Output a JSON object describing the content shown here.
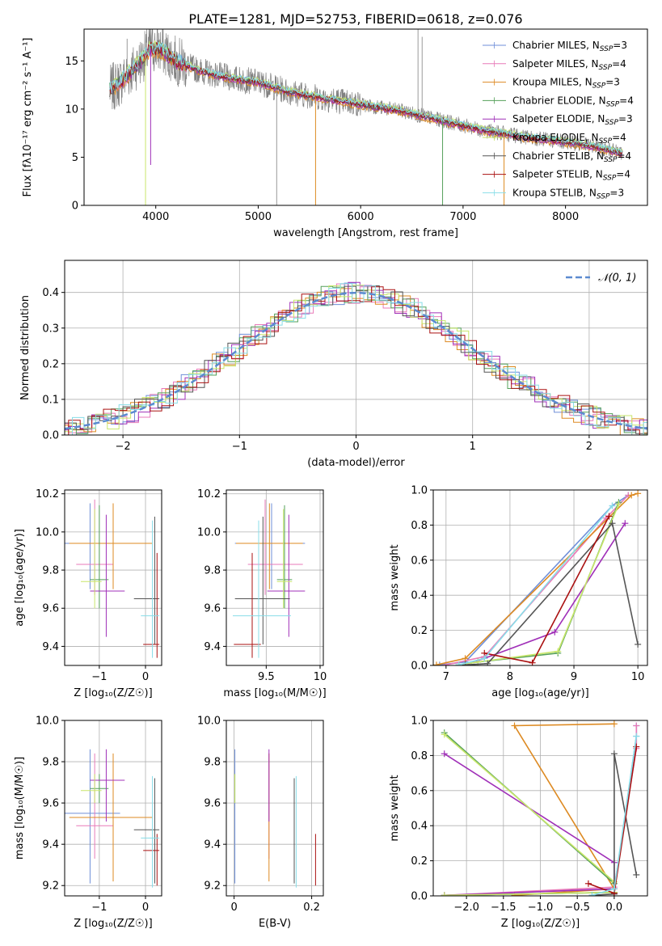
{
  "title": "PLATE=1281, MJD=52753, FIBERID=0618, z=0.076",
  "colors": {
    "chabrier_miles": "#6f8fd8",
    "salpeter_miles": "#e87ab8",
    "kroupa_miles": "#dd8a22",
    "chabrier_elodie": "#55a05a",
    "salpeter_elodie": "#a030b8",
    "kroupa_elodie": "#c8e66a",
    "chabrier_stelib": "#555555",
    "salpeter_stelib": "#aa1111",
    "kroupa_stelib": "#88dde8",
    "spectrum": "#808080",
    "normal": "#5b8ad0"
  },
  "legend_entries": [
    {
      "name": "Chabrier MILES, N",
      "sub": "SSP",
      "tail": "=3",
      "color_key": "chabrier_miles"
    },
    {
      "name": "Salpeter MILES, N",
      "sub": "SSP",
      "tail": "=4",
      "color_key": "salpeter_miles"
    },
    {
      "name": "Kroupa MILES, N",
      "sub": "SSP",
      "tail": "=3",
      "color_key": "kroupa_miles"
    },
    {
      "name": "Chabrier ELODIE, N",
      "sub": "SSP",
      "tail": "=4",
      "color_key": "chabrier_elodie"
    },
    {
      "name": "Salpeter ELODIE, N",
      "sub": "SSP",
      "tail": "=3",
      "color_key": "salpeter_elodie"
    },
    {
      "name": "Kroupa ELODIE, N",
      "sub": "SSP",
      "tail": "=4",
      "color_key": "kroupa_elodie"
    },
    {
      "name": "Chabrier STELIB, N",
      "sub": "SSP",
      "tail": "=4",
      "color_key": "chabrier_stelib"
    },
    {
      "name": "Salpeter STELIB, N",
      "sub": "SSP",
      "tail": "=4",
      "color_key": "salpeter_stelib"
    },
    {
      "name": "Kroupa STELIB, N",
      "sub": "SSP",
      "tail": "=3",
      "color_key": "kroupa_stelib"
    }
  ],
  "chart_data": [
    {
      "id": "spectrum",
      "type": "line",
      "xlabel": "wavelength [Angstrom, rest frame]",
      "ylabel": "Flux [fλ10⁻¹⁷ erg cm⁻² s⁻¹ A⁻¹]",
      "xlim": [
        3300,
        8800
      ],
      "ylim": [
        0,
        18.3
      ],
      "xticks": [
        4000,
        5000,
        6000,
        7000,
        8000
      ],
      "yticks": [
        0,
        5,
        10,
        15
      ],
      "grid": false,
      "legend": "top-right",
      "continuum": {
        "x": [
          3550,
          3650,
          3750,
          3850,
          3950,
          4050,
          4200,
          4400,
          4600,
          4800,
          5000,
          5300,
          5600,
          6000,
          6400,
          6800,
          7200,
          7600,
          8000,
          8300,
          8550
        ],
        "y": [
          12.0,
          12.8,
          13.8,
          15.0,
          16.3,
          16.2,
          15.0,
          14.1,
          13.5,
          13.1,
          12.8,
          11.8,
          11.2,
          10.5,
          9.8,
          8.8,
          7.8,
          7.1,
          6.6,
          6.1,
          5.4
        ]
      }
    },
    {
      "id": "residuals",
      "type": "line",
      "xlabel": "(data-model)/error",
      "ylabel": "Normed distribution",
      "xlim": [
        -2.5,
        2.5
      ],
      "ylim": [
        0,
        0.49
      ],
      "xticks": [
        -2,
        -1,
        0,
        1,
        2
      ],
      "yticks": [
        0.0,
        0.1,
        0.2,
        0.3,
        0.4
      ],
      "grid": true,
      "legend": "top-right",
      "legend_label": "𝒩(0, 1)"
    },
    {
      "id": "age_vs_Z",
      "type": "scatter",
      "xlabel": "Z [log₁₀(Z/Z☉)]",
      "ylabel": "age  [log₁₀(age/yr)]",
      "xlim": [
        -1.75,
        0.35
      ],
      "ylim": [
        9.3,
        10.22
      ],
      "xticks": [
        -1,
        0
      ],
      "yticks": [
        9.4,
        9.6,
        9.8,
        10.0,
        10.2
      ],
      "grid": true
    },
    {
      "id": "age_vs_mass",
      "type": "scatter",
      "xlabel": "mass [log₁₀(M/M☉)]",
      "ylabel": "",
      "xlim": [
        9.13,
        10.03
      ],
      "ylim": [
        9.3,
        10.22
      ],
      "xticks": [
        9.5,
        10.0
      ],
      "yticks": [
        9.4,
        9.6,
        9.8,
        10.0,
        10.2
      ],
      "grid": true
    },
    {
      "id": "massweight_vs_age",
      "type": "line",
      "xlabel": "age  [log₁₀(age/yr)]",
      "ylabel": "mass weight",
      "xlim": [
        6.8,
        10.15
      ],
      "ylim": [
        0,
        1.0
      ],
      "xticks": [
        7,
        8,
        9,
        10
      ],
      "yticks": [
        0.0,
        0.2,
        0.4,
        0.6,
        0.8,
        1.0
      ],
      "grid": true
    },
    {
      "id": "mass_vs_Z",
      "type": "scatter",
      "xlabel": "Z [log₁₀(Z/Z☉)]",
      "ylabel": "mass [log₁₀(M/M☉)]",
      "xlim": [
        -1.75,
        0.35
      ],
      "ylim": [
        9.15,
        10.0
      ],
      "xticks": [
        -1,
        0
      ],
      "yticks": [
        9.2,
        9.4,
        9.6,
        9.8,
        10.0
      ],
      "grid": true
    },
    {
      "id": "mass_vs_ebv",
      "type": "scatter",
      "xlabel": "E(B-V)",
      "ylabel": "",
      "xlim": [
        -0.02,
        0.23
      ],
      "ylim": [
        9.15,
        10.0
      ],
      "xticks": [
        0.0,
        0.2
      ],
      "yticks": [
        9.2,
        9.4,
        9.6,
        9.8,
        10.0
      ],
      "grid": true
    },
    {
      "id": "massweight_vs_Z",
      "type": "line",
      "xlabel": "Z [log₁₀(Z/Z☉)]",
      "ylabel": "mass weight",
      "xlim": [
        -2.45,
        0.45
      ],
      "ylim": [
        0,
        1.0
      ],
      "xticks": [
        -2.0,
        -1.5,
        -1.0,
        -0.5,
        0.0
      ],
      "yticks": [
        0.0,
        0.2,
        0.4,
        0.6,
        0.8,
        1.0
      ],
      "grid": true
    }
  ],
  "models": [
    {
      "key": "chabrier_miles",
      "Z": -1.2,
      "Zerr": [
        0.75,
        0.65
      ],
      "age": 9.94,
      "aerr": [
        0.24,
        0.21
      ],
      "mass": 9.55,
      "merr": [
        0.34,
        0.31
      ],
      "ebv": 0.002,
      "sfh": {
        "age": [
          6.9,
          7.3,
          9.6,
          9.85
        ],
        "w": [
          0.003,
          0.02,
          0.91,
          0.97
        ],
        "Z": [
          -2.3,
          0.0,
          0.3,
          0.3
        ]
      }
    },
    {
      "key": "salpeter_miles",
      "Z": -1.1,
      "Zerr": [
        0.4,
        0.4
      ],
      "age": 9.83,
      "aerr": [
        0.16,
        0.34
      ],
      "mass": 9.49,
      "merr": [
        0.16,
        0.35
      ],
      "ebv": 0.09,
      "sfh": {
        "age": [
          7.0,
          7.6,
          9.5,
          9.85
        ],
        "w": [
          0.003,
          0.05,
          0.84,
          0.97
        ],
        "Z": [
          -2.3,
          0.0,
          0.3,
          0.3
        ]
      }
    },
    {
      "key": "kroupa_miles",
      "Z": -0.7,
      "Zerr": [
        0.95,
        0.85
      ],
      "age": 9.94,
      "aerr": [
        0.24,
        0.21
      ],
      "mass": 9.53,
      "merr": [
        0.31,
        0.31
      ],
      "ebv": 0.09,
      "sfh": {
        "age": [
          6.85,
          7.3,
          9.9,
          10.0
        ],
        "w": [
          0.003,
          0.04,
          0.97,
          0.98
        ],
        "Z": [
          -1.35,
          0.0,
          -1.35,
          0.0
        ]
      }
    },
    {
      "key": "chabrier_elodie",
      "Z": -1.0,
      "Zerr": [
        0.2,
        0.2
      ],
      "age": 9.75,
      "aerr": [
        0.15,
        0.39
      ],
      "mass": 9.67,
      "merr": [
        0.07,
        0.07
      ],
      "ebv": 0.002,
      "sfh": {
        "age": [
          7.2,
          7.5,
          8.75,
          9.7
        ],
        "w": [
          0.003,
          0.02,
          0.07,
          0.93
        ],
        "Z": [
          -2.3,
          0.0,
          0.0,
          -2.3
        ]
      }
    },
    {
      "key": "salpeter_elodie",
      "Z": -0.85,
      "Zerr": [
        0.35,
        0.4
      ],
      "age": 9.69,
      "aerr": [
        0.24,
        0.4
      ],
      "mass": 9.71,
      "merr": [
        0.2,
        0.15
      ],
      "ebv": 0.09,
      "sfh": {
        "age": [
          7.3,
          7.6,
          8.7,
          9.8
        ],
        "w": [
          0.003,
          0.04,
          0.19,
          0.81
        ],
        "Z": [
          -2.3,
          0.0,
          0.0,
          -2.3
        ]
      }
    },
    {
      "key": "kroupa_elodie",
      "Z": -1.1,
      "Zerr": [
        0.3,
        0.15
      ],
      "age": 9.74,
      "aerr": [
        0.14,
        0.38
      ],
      "mass": 9.66,
      "merr": [
        0.06,
        0.08
      ],
      "ebv": 0.002,
      "sfh": {
        "age": [
          7.2,
          7.5,
          8.75,
          9.7
        ],
        "w": [
          0.003,
          0.02,
          0.08,
          0.92
        ],
        "Z": [
          -2.3,
          0.0,
          0.0,
          -2.3
        ]
      }
    },
    {
      "key": "chabrier_stelib",
      "Z": 0.2,
      "Zerr": [
        0.45,
        0.1
      ],
      "age": 9.65,
      "aerr": [
        0.24,
        0.43
      ],
      "mass": 9.47,
      "merr": [
        0.26,
        0.25
      ],
      "ebv": 0.155,
      "sfh": {
        "age": [
          7.3,
          7.65,
          9.6,
          10.0
        ],
        "w": [
          0.003,
          0.01,
          0.81,
          0.12
        ],
        "Z": [
          -0.3,
          0.0,
          0.0,
          0.3
        ]
      }
    },
    {
      "key": "salpeter_stelib",
      "Z": 0.25,
      "Zerr": [
        0.3,
        0.05
      ],
      "age": 9.41,
      "aerr": [
        0.07,
        0.48
      ],
      "mass": 9.37,
      "merr": [
        0.17,
        0.08
      ],
      "ebv": 0.21,
      "sfh": {
        "age": [
          7.6,
          8.35,
          9.55
        ],
        "w": [
          0.07,
          0.015,
          0.85
        ],
        "Z": [
          -0.35,
          0.0,
          0.3
        ]
      }
    },
    {
      "key": "kroupa_stelib",
      "Z": 0.15,
      "Zerr": [
        0.25,
        0.15
      ],
      "age": 9.56,
      "aerr": [
        0.22,
        0.5
      ],
      "mass": 9.43,
      "merr": [
        0.24,
        0.3
      ],
      "ebv": 0.16,
      "sfh": {
        "age": [
          7.2,
          7.6,
          9.6
        ],
        "w": [
          0.003,
          0.04,
          0.91
        ],
        "Z": [
          -0.3,
          0.0,
          0.3
        ]
      }
    }
  ]
}
